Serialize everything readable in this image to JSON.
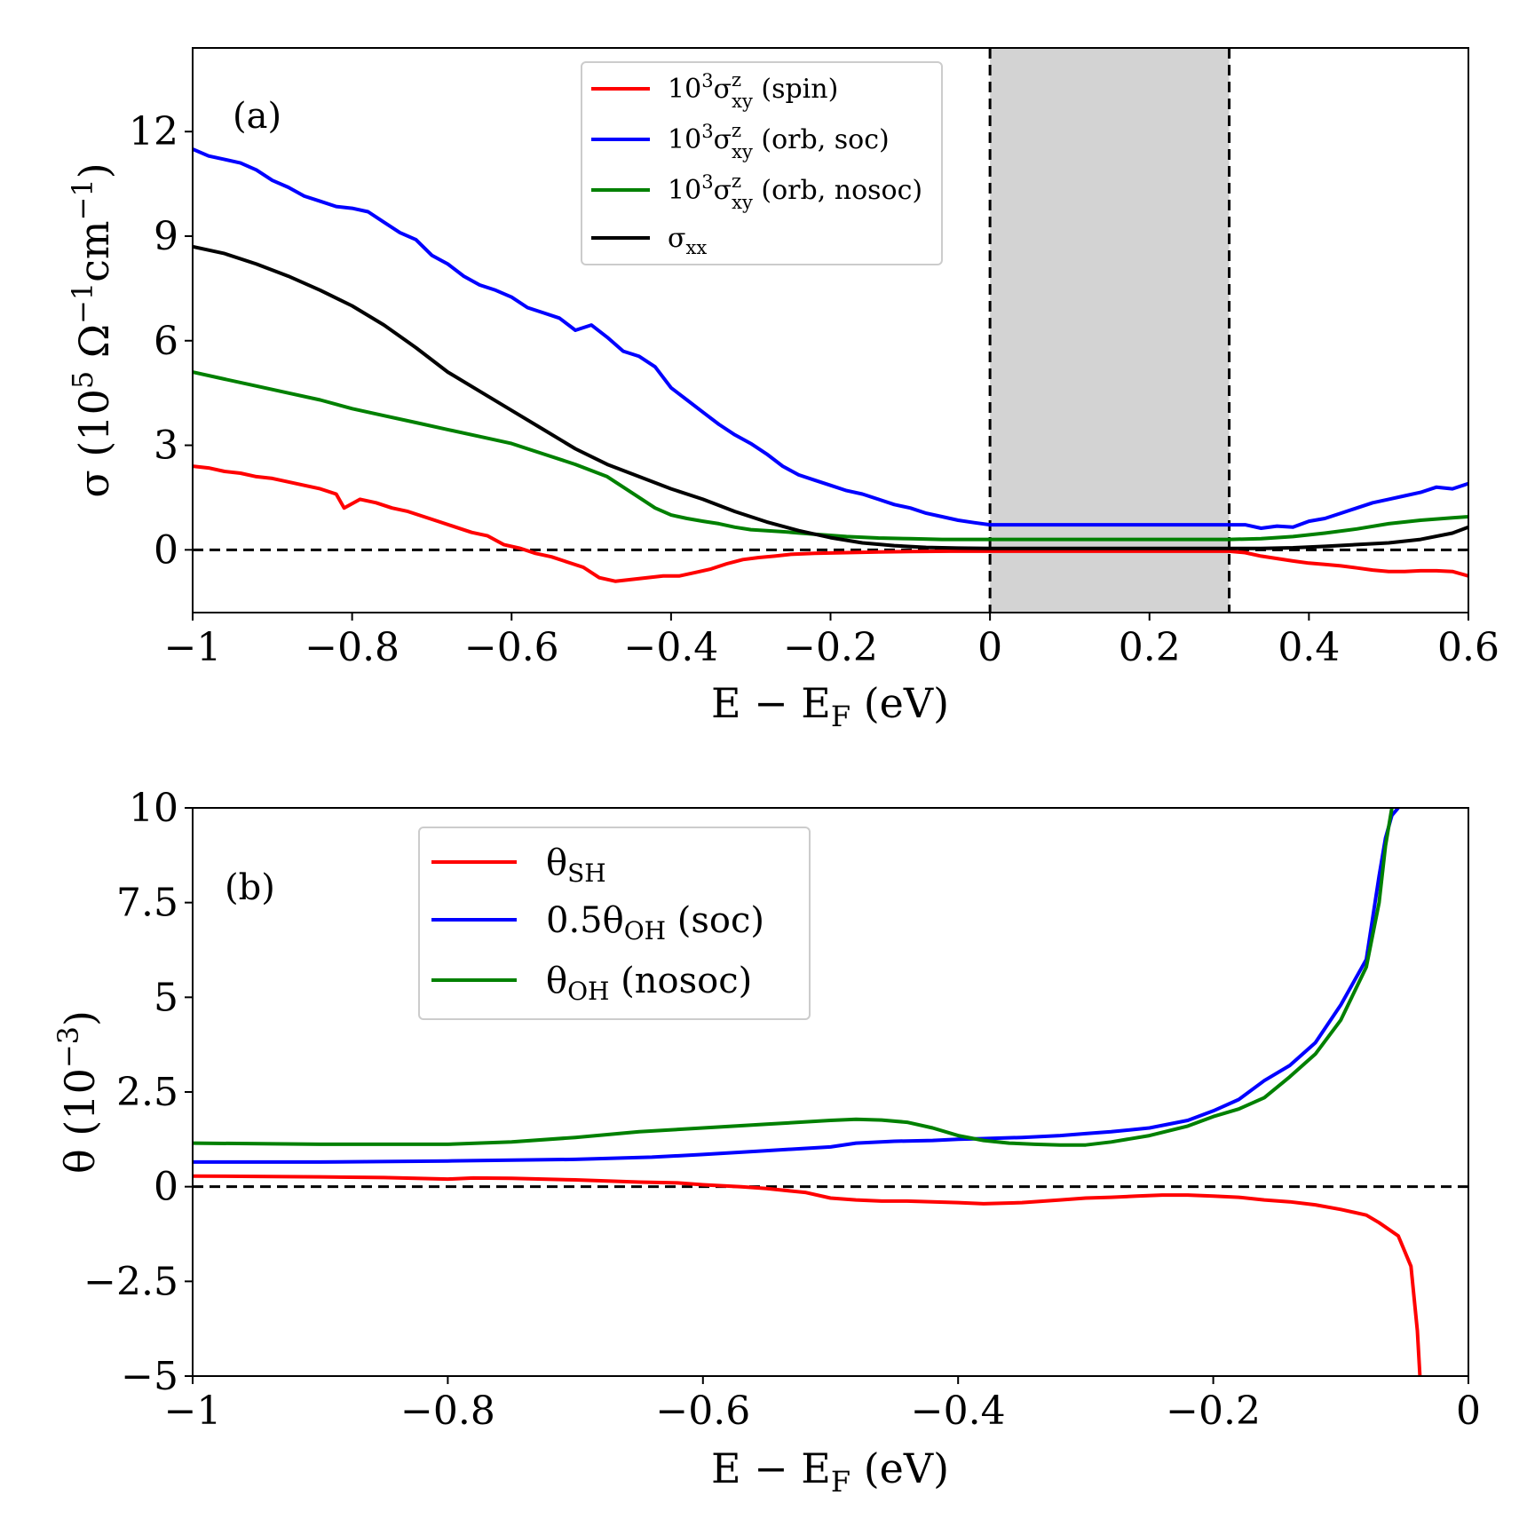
{
  "chart_data": [
    {
      "panel": "(a)",
      "type": "line",
      "xlabel": "E − E_F (eV)",
      "ylabel": "σ (10^5 Ω^−1 cm^−1)",
      "xlim": [
        -1.0,
        0.6
      ],
      "ylim": [
        -1.8,
        14.4
      ],
      "xticks": [
        "−1",
        "−0.8",
        "−0.6",
        "−0.4",
        "−0.2",
        "0",
        "0.2",
        "0.4",
        "0.6"
      ],
      "xtick_values": [
        -1.0,
        -0.8,
        -0.6,
        -0.4,
        -0.2,
        0.0,
        0.2,
        0.4,
        0.6
      ],
      "yticks": [
        "0",
        "3",
        "6",
        "9",
        "12"
      ],
      "ytick_values": [
        0,
        3,
        6,
        9,
        12
      ],
      "shaded_region": [
        0.0,
        0.3
      ],
      "shaded_color": "#d3d3d3",
      "reference_lines": {
        "horizontal": [
          0
        ],
        "vertical": [
          0.0,
          0.3
        ]
      },
      "legend_position": "top-center",
      "series": [
        {
          "name": "10^3 σ^z_xy (spin)",
          "color": "#ff0000",
          "x": [
            -1.0,
            -0.98,
            -0.96,
            -0.94,
            -0.92,
            -0.9,
            -0.88,
            -0.86,
            -0.84,
            -0.82,
            -0.81,
            -0.79,
            -0.77,
            -0.75,
            -0.73,
            -0.71,
            -0.69,
            -0.67,
            -0.65,
            -0.63,
            -0.61,
            -0.59,
            -0.57,
            -0.55,
            -0.53,
            -0.51,
            -0.49,
            -0.47,
            -0.45,
            -0.43,
            -0.41,
            -0.39,
            -0.37,
            -0.35,
            -0.33,
            -0.31,
            -0.29,
            -0.27,
            -0.25,
            -0.22,
            -0.18,
            -0.14,
            -0.1,
            -0.05,
            0.0,
            0.05,
            0.1,
            0.15,
            0.2,
            0.25,
            0.3,
            0.32,
            0.34,
            0.36,
            0.38,
            0.4,
            0.42,
            0.44,
            0.46,
            0.48,
            0.5,
            0.52,
            0.54,
            0.56,
            0.58,
            0.6
          ],
          "y": [
            2.4,
            2.35,
            2.25,
            2.2,
            2.1,
            2.05,
            1.95,
            1.85,
            1.75,
            1.6,
            1.2,
            1.45,
            1.35,
            1.2,
            1.1,
            0.95,
            0.8,
            0.65,
            0.5,
            0.4,
            0.15,
            0.05,
            -0.1,
            -0.2,
            -0.35,
            -0.5,
            -0.8,
            -0.9,
            -0.85,
            -0.8,
            -0.75,
            -0.75,
            -0.65,
            -0.55,
            -0.4,
            -0.28,
            -0.22,
            -0.18,
            -0.13,
            -0.1,
            -0.08,
            -0.06,
            -0.05,
            -0.04,
            -0.04,
            -0.04,
            -0.04,
            -0.04,
            -0.04,
            -0.04,
            -0.04,
            -0.08,
            -0.18,
            -0.25,
            -0.32,
            -0.38,
            -0.42,
            -0.46,
            -0.52,
            -0.58,
            -0.62,
            -0.62,
            -0.6,
            -0.6,
            -0.62,
            -0.75
          ]
        },
        {
          "name": "10^3 σ^z_xy (orb, soc)",
          "color": "#0000ff",
          "x": [
            -1.0,
            -0.98,
            -0.96,
            -0.94,
            -0.92,
            -0.9,
            -0.88,
            -0.86,
            -0.84,
            -0.82,
            -0.8,
            -0.78,
            -0.76,
            -0.74,
            -0.72,
            -0.7,
            -0.68,
            -0.66,
            -0.64,
            -0.62,
            -0.6,
            -0.58,
            -0.56,
            -0.54,
            -0.52,
            -0.5,
            -0.48,
            -0.46,
            -0.44,
            -0.42,
            -0.4,
            -0.38,
            -0.36,
            -0.34,
            -0.32,
            -0.3,
            -0.28,
            -0.26,
            -0.24,
            -0.22,
            -0.2,
            -0.18,
            -0.16,
            -0.14,
            -0.12,
            -0.1,
            -0.08,
            -0.06,
            -0.04,
            -0.02,
            0.0,
            0.05,
            0.1,
            0.15,
            0.2,
            0.25,
            0.3,
            0.32,
            0.34,
            0.36,
            0.38,
            0.4,
            0.42,
            0.44,
            0.46,
            0.48,
            0.5,
            0.52,
            0.54,
            0.56,
            0.58,
            0.6
          ],
          "y": [
            11.5,
            11.3,
            11.2,
            11.1,
            10.9,
            10.6,
            10.4,
            10.15,
            10.0,
            9.85,
            9.8,
            9.7,
            9.4,
            9.1,
            8.9,
            8.45,
            8.2,
            7.85,
            7.6,
            7.45,
            7.25,
            6.95,
            6.8,
            6.65,
            6.3,
            6.45,
            6.1,
            5.7,
            5.55,
            5.25,
            4.65,
            4.3,
            3.95,
            3.6,
            3.3,
            3.05,
            2.75,
            2.4,
            2.15,
            2.0,
            1.85,
            1.7,
            1.6,
            1.45,
            1.3,
            1.2,
            1.05,
            0.95,
            0.85,
            0.78,
            0.72,
            0.72,
            0.72,
            0.72,
            0.72,
            0.72,
            0.72,
            0.72,
            0.62,
            0.68,
            0.65,
            0.82,
            0.9,
            1.05,
            1.2,
            1.35,
            1.45,
            1.55,
            1.65,
            1.8,
            1.75,
            1.9
          ]
        },
        {
          "name": "10^3 σ^z_xy (orb, nosoc)",
          "color": "#008000",
          "x": [
            -1.0,
            -0.96,
            -0.92,
            -0.88,
            -0.84,
            -0.8,
            -0.76,
            -0.72,
            -0.68,
            -0.64,
            -0.6,
            -0.56,
            -0.52,
            -0.48,
            -0.46,
            -0.44,
            -0.42,
            -0.4,
            -0.38,
            -0.36,
            -0.34,
            -0.32,
            -0.3,
            -0.26,
            -0.22,
            -0.18,
            -0.14,
            -0.1,
            -0.06,
            -0.02,
            0.0,
            0.05,
            0.1,
            0.15,
            0.2,
            0.25,
            0.3,
            0.34,
            0.38,
            0.42,
            0.46,
            0.5,
            0.54,
            0.58,
            0.6
          ],
          "y": [
            5.1,
            4.9,
            4.7,
            4.5,
            4.3,
            4.05,
            3.85,
            3.65,
            3.45,
            3.25,
            3.05,
            2.75,
            2.45,
            2.1,
            1.8,
            1.5,
            1.2,
            1.0,
            0.9,
            0.82,
            0.75,
            0.65,
            0.58,
            0.52,
            0.45,
            0.38,
            0.34,
            0.32,
            0.3,
            0.3,
            0.3,
            0.3,
            0.3,
            0.3,
            0.3,
            0.3,
            0.3,
            0.32,
            0.38,
            0.48,
            0.6,
            0.75,
            0.85,
            0.92,
            0.95
          ]
        },
        {
          "name": "σ_xx",
          "color": "#000000",
          "x": [
            -1.0,
            -0.96,
            -0.92,
            -0.88,
            -0.84,
            -0.8,
            -0.76,
            -0.72,
            -0.68,
            -0.64,
            -0.6,
            -0.56,
            -0.52,
            -0.48,
            -0.44,
            -0.4,
            -0.36,
            -0.32,
            -0.28,
            -0.24,
            -0.2,
            -0.16,
            -0.12,
            -0.08,
            -0.04,
            0.0,
            0.05,
            0.1,
            0.15,
            0.2,
            0.25,
            0.3,
            0.34,
            0.38,
            0.42,
            0.46,
            0.5,
            0.54,
            0.58,
            0.6
          ],
          "y": [
            8.7,
            8.5,
            8.2,
            7.85,
            7.45,
            7.0,
            6.45,
            5.8,
            5.1,
            4.55,
            4.0,
            3.45,
            2.9,
            2.45,
            2.1,
            1.75,
            1.45,
            1.1,
            0.8,
            0.55,
            0.35,
            0.2,
            0.12,
            0.07,
            0.05,
            0.04,
            0.04,
            0.04,
            0.04,
            0.04,
            0.04,
            0.04,
            0.04,
            0.06,
            0.1,
            0.15,
            0.2,
            0.3,
            0.48,
            0.65
          ]
        }
      ]
    },
    {
      "panel": "(b)",
      "type": "line",
      "xlabel": "E − E_F (eV)",
      "ylabel": "θ (10^−3)",
      "xlim": [
        -1.0,
        0.0
      ],
      "ylim": [
        -5.0,
        10.0
      ],
      "xticks": [
        "−1",
        "−0.8",
        "−0.6",
        "−0.4",
        "−0.2",
        "0"
      ],
      "xtick_values": [
        -1.0,
        -0.8,
        -0.6,
        -0.4,
        -0.2,
        0.0
      ],
      "yticks": [
        "−5",
        "−2.5",
        "0",
        "2.5",
        "5",
        "7.5",
        "10"
      ],
      "ytick_values": [
        -5,
        -2.5,
        0,
        2.5,
        5,
        7.5,
        10
      ],
      "reference_lines": {
        "horizontal": [
          0
        ]
      },
      "legend_position": "top-left",
      "series": [
        {
          "name": "θ_SH",
          "color": "#ff0000",
          "x": [
            -1.0,
            -0.95,
            -0.9,
            -0.85,
            -0.8,
            -0.78,
            -0.75,
            -0.7,
            -0.65,
            -0.62,
            -0.6,
            -0.57,
            -0.55,
            -0.52,
            -0.5,
            -0.48,
            -0.46,
            -0.44,
            -0.42,
            -0.4,
            -0.38,
            -0.35,
            -0.32,
            -0.3,
            -0.28,
            -0.26,
            -0.24,
            -0.22,
            -0.2,
            -0.18,
            -0.16,
            -0.14,
            -0.12,
            -0.1,
            -0.08,
            -0.07,
            -0.055,
            -0.045,
            -0.04,
            -0.038
          ],
          "y": [
            0.28,
            0.27,
            0.26,
            0.24,
            0.2,
            0.23,
            0.22,
            0.18,
            0.12,
            0.1,
            0.05,
            0.0,
            -0.05,
            -0.15,
            -0.3,
            -0.35,
            -0.38,
            -0.38,
            -0.4,
            -0.42,
            -0.45,
            -0.42,
            -0.35,
            -0.3,
            -0.28,
            -0.25,
            -0.22,
            -0.22,
            -0.25,
            -0.28,
            -0.35,
            -0.4,
            -0.48,
            -0.6,
            -0.75,
            -0.95,
            -1.3,
            -2.1,
            -3.8,
            -5.0
          ]
        },
        {
          "name": "0.5θ_OH (soc)",
          "color": "#0000ff",
          "x": [
            -1.0,
            -0.9,
            -0.8,
            -0.7,
            -0.64,
            -0.6,
            -0.55,
            -0.5,
            -0.48,
            -0.45,
            -0.42,
            -0.4,
            -0.38,
            -0.35,
            -0.32,
            -0.3,
            -0.28,
            -0.25,
            -0.22,
            -0.2,
            -0.18,
            -0.16,
            -0.14,
            -0.12,
            -0.1,
            -0.08,
            -0.07,
            -0.065,
            -0.06,
            -0.055
          ],
          "y": [
            0.65,
            0.65,
            0.68,
            0.72,
            0.78,
            0.85,
            0.95,
            1.05,
            1.15,
            1.2,
            1.22,
            1.25,
            1.27,
            1.3,
            1.35,
            1.4,
            1.45,
            1.55,
            1.75,
            2.0,
            2.3,
            2.8,
            3.2,
            3.8,
            4.8,
            6.0,
            8.2,
            9.2,
            9.8,
            10.0
          ]
        },
        {
          "name": "θ_OH (nosoc)",
          "color": "#008000",
          "x": [
            -1.0,
            -0.9,
            -0.85,
            -0.8,
            -0.75,
            -0.7,
            -0.65,
            -0.6,
            -0.55,
            -0.5,
            -0.48,
            -0.46,
            -0.44,
            -0.42,
            -0.4,
            -0.38,
            -0.36,
            -0.34,
            -0.32,
            -0.3,
            -0.28,
            -0.25,
            -0.22,
            -0.2,
            -0.18,
            -0.16,
            -0.14,
            -0.12,
            -0.1,
            -0.08,
            -0.07,
            -0.065,
            -0.06
          ],
          "y": [
            1.15,
            1.12,
            1.12,
            1.12,
            1.18,
            1.3,
            1.45,
            1.55,
            1.65,
            1.75,
            1.78,
            1.76,
            1.7,
            1.55,
            1.35,
            1.22,
            1.15,
            1.12,
            1.1,
            1.1,
            1.18,
            1.35,
            1.6,
            1.85,
            2.05,
            2.35,
            2.9,
            3.5,
            4.4,
            5.8,
            7.5,
            9.0,
            10.0
          ]
        }
      ]
    }
  ]
}
